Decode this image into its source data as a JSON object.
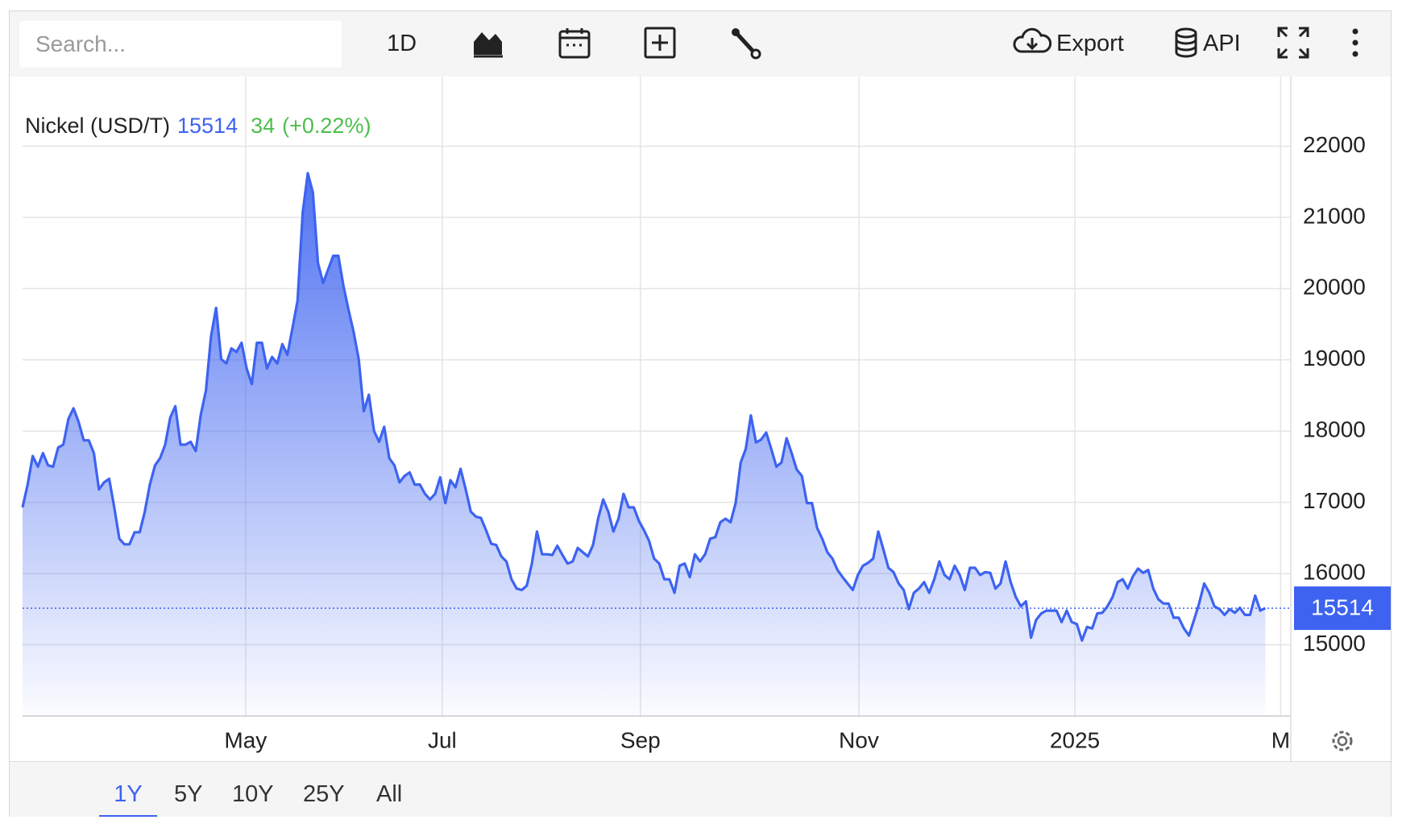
{
  "toolbar": {
    "search_placeholder": "Search...",
    "interval": "1D",
    "export": "Export",
    "api": "API"
  },
  "ranges": [
    "1Y",
    "5Y",
    "10Y",
    "25Y",
    "All"
  ],
  "active_range": 0,
  "chart_data": {
    "type": "area",
    "title": "Nickel (USD/T)",
    "last_value": 15514,
    "change": 34,
    "change_label": "(+0.22%)",
    "series": [
      {
        "name": "Nickel",
        "color": "#3d63f0",
        "values": [
          16930,
          17250,
          17650,
          17500,
          17690,
          17520,
          17500,
          17770,
          17810,
          18170,
          18320,
          18130,
          17870,
          17870,
          17690,
          17180,
          17280,
          17330,
          16930,
          16490,
          16410,
          16410,
          16580,
          16580,
          16870,
          17250,
          17520,
          17620,
          17810,
          18190,
          18350,
          17810,
          17810,
          17850,
          17720,
          18230,
          18570,
          19330,
          19730,
          19010,
          18950,
          19160,
          19110,
          19240,
          18880,
          18660,
          19240,
          19240,
          18880,
          19040,
          18950,
          19220,
          19070,
          19450,
          19830,
          21070,
          21620,
          21350,
          20360,
          20080,
          20270,
          20460,
          20460,
          20040,
          19700,
          19390,
          19010,
          18280,
          18510,
          18000,
          17850,
          18060,
          17620,
          17520,
          17280,
          17370,
          17420,
          17250,
          17250,
          17120,
          17040,
          17120,
          17350,
          16990,
          17310,
          17210,
          17470,
          17180,
          16870,
          16800,
          16780,
          16610,
          16420,
          16400,
          16240,
          16170,
          15920,
          15790,
          15770,
          15830,
          16140,
          16590,
          16270,
          16270,
          16260,
          16390,
          16260,
          16140,
          16170,
          16360,
          16300,
          16240,
          16400,
          16770,
          17040,
          16870,
          16590,
          16770,
          17120,
          16930,
          16930,
          16740,
          16610,
          16460,
          16210,
          16140,
          15920,
          15920,
          15730,
          16110,
          16140,
          15950,
          16270,
          16170,
          16270,
          16490,
          16510,
          16720,
          16770,
          16720,
          16990,
          17560,
          17750,
          18220,
          17840,
          17880,
          17980,
          17750,
          17500,
          17560,
          17900,
          17690,
          17460,
          17370,
          16990,
          16990,
          16640,
          16490,
          16300,
          16210,
          16050,
          15950,
          15860,
          15770,
          15980,
          16110,
          16150,
          16210,
          16590,
          16340,
          16080,
          16020,
          15860,
          15770,
          15500,
          15730,
          15790,
          15880,
          15730,
          15920,
          16170,
          15980,
          15920,
          16110,
          15980,
          15770,
          16080,
          16080,
          15980,
          16020,
          16010,
          15790,
          15860,
          16170,
          15880,
          15670,
          15540,
          15610,
          15100,
          15350,
          15440,
          15480,
          15480,
          15480,
          15320,
          15480,
          15320,
          15290,
          15060,
          15250,
          15230,
          15440,
          15450,
          15540,
          15670,
          15880,
          15920,
          15790,
          15960,
          16070,
          16010,
          16050,
          15790,
          15640,
          15580,
          15580,
          15380,
          15380,
          15230,
          15130,
          15350,
          15580,
          15860,
          15730,
          15540,
          15500,
          15420,
          15500,
          15450,
          15520,
          15420,
          15420,
          15690,
          15480,
          15514
        ]
      }
    ],
    "xlim": [
      0,
      249
    ],
    "xticks": [
      {
        "value": 43.8,
        "label": "May"
      },
      {
        "value": 82.4,
        "label": "Jul"
      },
      {
        "value": 121.3,
        "label": "Sep"
      },
      {
        "value": 164.2,
        "label": "Nov"
      },
      {
        "value": 206.6,
        "label": "2025"
      },
      {
        "value": 247,
        "label": "M"
      }
    ],
    "ylim": [
      14000,
      23000
    ],
    "yticks": [
      15000,
      16000,
      17000,
      18000,
      19000,
      20000,
      21000,
      22000
    ],
    "grid": true
  }
}
